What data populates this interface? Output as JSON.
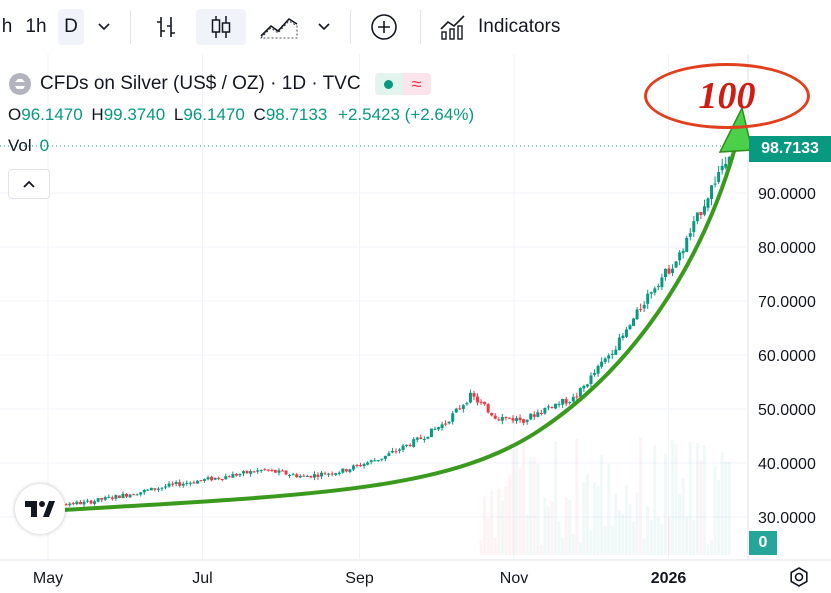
{
  "toolbar": {
    "interval_partial": "h",
    "interval_1h": "1h",
    "interval_d": "D",
    "indicators_label": "Indicators"
  },
  "legend": {
    "title": "CFDs on Silver (US$ / OZ) · 1D · TVC",
    "o_label": "O",
    "o_value": "96.1470",
    "h_label": "H",
    "h_value": "99.3740",
    "l_label": "L",
    "l_value": "96.1470",
    "c_label": "C",
    "c_value": "98.7133",
    "change": "+2.5423 (+2.64%)",
    "vol_label": "Vol",
    "vol_value": "0"
  },
  "annotation": {
    "text": "100"
  },
  "colors": {
    "up": "#089981",
    "down": "#f23645",
    "trend_arrow": "#3a9a1e",
    "circle": "#e0401d"
  },
  "chart_data": {
    "type": "candlestick",
    "title": "CFDs on Silver (US$ / OZ) · 1D · TVC",
    "x_ticks": [
      "May",
      "Jul",
      "Sep",
      "Nov",
      "2026"
    ],
    "y_ticks": [
      "30.0000",
      "40.0000",
      "50.0000",
      "60.0000",
      "70.0000",
      "80.0000",
      "90.0000"
    ],
    "ylim": [
      26,
      106
    ],
    "last_price": "98.7133",
    "volume_label": "0",
    "series_approx": [
      {
        "date": "2025-04-20",
        "close": 32.3
      },
      {
        "date": "2025-05-15",
        "close": 32.6
      },
      {
        "date": "2025-06-05",
        "close": 34.5
      },
      {
        "date": "2025-06-20",
        "close": 36.0
      },
      {
        "date": "2025-07-10",
        "close": 37.5
      },
      {
        "date": "2025-07-25",
        "close": 38.7
      },
      {
        "date": "2025-08-10",
        "close": 37.5
      },
      {
        "date": "2025-08-25",
        "close": 38.5
      },
      {
        "date": "2025-09-10",
        "close": 41.0
      },
      {
        "date": "2025-09-25",
        "close": 44.5
      },
      {
        "date": "2025-10-05",
        "close": 47.5
      },
      {
        "date": "2025-10-15",
        "close": 52.5
      },
      {
        "date": "2025-10-25",
        "close": 48.5
      },
      {
        "date": "2025-11-05",
        "close": 48.0
      },
      {
        "date": "2025-11-15",
        "close": 50.5
      },
      {
        "date": "2025-11-25",
        "close": 52.0
      },
      {
        "date": "2025-12-05",
        "close": 58.0
      },
      {
        "date": "2025-12-15",
        "close": 64.0
      },
      {
        "date": "2025-12-25",
        "close": 72.0
      },
      {
        "date": "2026-01-05",
        "close": 78.0
      },
      {
        "date": "2026-01-15",
        "close": 88.0
      },
      {
        "date": "2026-01-22",
        "close": 95.0
      },
      {
        "date": "2026-01-26",
        "close": 98.7
      }
    ]
  }
}
